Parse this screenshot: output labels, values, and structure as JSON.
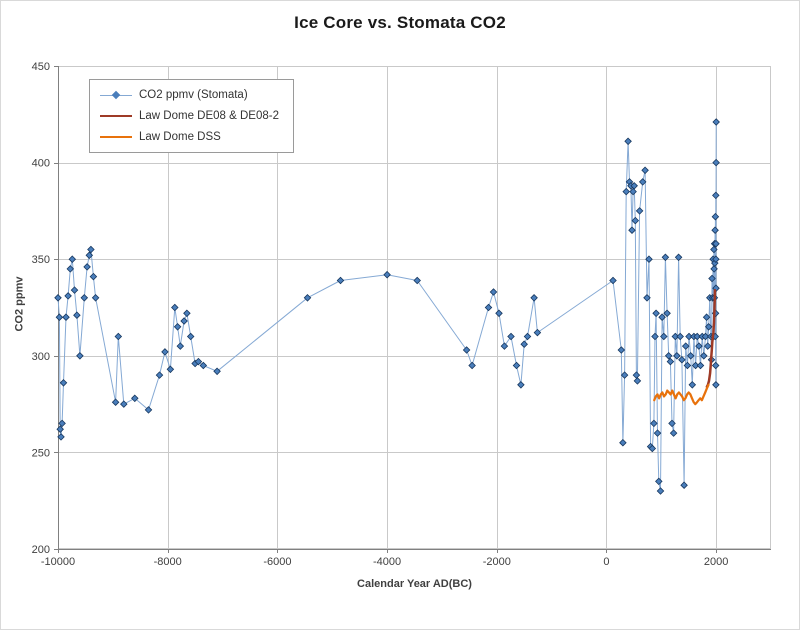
{
  "chart_data": {
    "type": "line",
    "title": "Ice Core vs. Stomata CO2",
    "xlabel": "Calendar Year AD(BC)",
    "ylabel": "CO2 ppmv",
    "xlim": [
      -10000,
      3000
    ],
    "ylim": [
      200,
      450
    ],
    "x_ticks": [
      -10000,
      -8000,
      -6000,
      -4000,
      -2000,
      0,
      2000
    ],
    "y_ticks": [
      200,
      250,
      300,
      350,
      400,
      450
    ],
    "grid": true,
    "legend_position": "top-left-inside",
    "series": [
      {
        "name": "CO2 ppmv (Stomata)",
        "type": "line+marker",
        "marker": "diamond",
        "line_color": "#85A9D4",
        "line_width": 1,
        "marker_color": "#4A7EBB",
        "marker_outline": "#17375E",
        "points": [
          [
            -10000,
            330
          ],
          [
            -9975,
            320
          ],
          [
            -9960,
            262
          ],
          [
            -9945,
            258
          ],
          [
            -9925,
            265
          ],
          [
            -9900,
            286
          ],
          [
            -9855,
            320
          ],
          [
            -9815,
            331
          ],
          [
            -9775,
            345
          ],
          [
            -9740,
            350
          ],
          [
            -9700,
            334
          ],
          [
            -9655,
            321
          ],
          [
            -9600,
            300
          ],
          [
            -9520,
            330
          ],
          [
            -9470,
            346
          ],
          [
            -9430,
            352
          ],
          [
            -9400,
            355
          ],
          [
            -9355,
            341
          ],
          [
            -9315,
            330
          ],
          [
            -8950,
            276
          ],
          [
            -8900,
            310
          ],
          [
            -8800,
            275
          ],
          [
            -8600,
            278
          ],
          [
            -8350,
            272
          ],
          [
            -8150,
            290
          ],
          [
            -8050,
            302
          ],
          [
            -7950,
            293
          ],
          [
            -7870,
            325
          ],
          [
            -7820,
            315
          ],
          [
            -7770,
            305
          ],
          [
            -7700,
            318
          ],
          [
            -7650,
            322
          ],
          [
            -7580,
            310
          ],
          [
            -7500,
            296
          ],
          [
            -7440,
            297
          ],
          [
            -7350,
            295
          ],
          [
            -7100,
            292
          ],
          [
            -5450,
            330
          ],
          [
            -4850,
            339
          ],
          [
            -4000,
            342
          ],
          [
            -3450,
            339
          ],
          [
            -2550,
            303
          ],
          [
            -2450,
            295
          ],
          [
            -2150,
            325
          ],
          [
            -2060,
            333
          ],
          [
            -1960,
            322
          ],
          [
            -1860,
            305
          ],
          [
            -1740,
            310
          ],
          [
            -1640,
            295
          ],
          [
            -1560,
            285
          ],
          [
            -1500,
            306
          ],
          [
            -1440,
            310
          ],
          [
            -1320,
            330
          ],
          [
            -1260,
            312
          ],
          [
            120,
            339
          ],
          [
            270,
            303
          ],
          [
            300,
            255
          ],
          [
            330,
            290
          ],
          [
            360,
            385
          ],
          [
            395,
            411
          ],
          [
            420,
            390
          ],
          [
            445,
            388
          ],
          [
            465,
            365
          ],
          [
            485,
            385
          ],
          [
            505,
            388
          ],
          [
            525,
            370
          ],
          [
            545,
            290
          ],
          [
            565,
            287
          ],
          [
            605,
            375
          ],
          [
            660,
            390
          ],
          [
            705,
            396
          ],
          [
            740,
            330
          ],
          [
            775,
            350
          ],
          [
            805,
            253
          ],
          [
            835,
            252
          ],
          [
            865,
            265
          ],
          [
            885,
            310
          ],
          [
            905,
            322
          ],
          [
            930,
            260
          ],
          [
            955,
            235
          ],
          [
            985,
            230
          ],
          [
            1015,
            320
          ],
          [
            1045,
            310
          ],
          [
            1075,
            351
          ],
          [
            1105,
            322
          ],
          [
            1135,
            300
          ],
          [
            1165,
            297
          ],
          [
            1195,
            265
          ],
          [
            1225,
            260
          ],
          [
            1255,
            310
          ],
          [
            1285,
            300
          ],
          [
            1315,
            351
          ],
          [
            1345,
            310
          ],
          [
            1375,
            298
          ],
          [
            1415,
            233
          ],
          [
            1445,
            305
          ],
          [
            1475,
            295
          ],
          [
            1505,
            310
          ],
          [
            1535,
            300
          ],
          [
            1565,
            285
          ],
          [
            1595,
            310
          ],
          [
            1625,
            295
          ],
          [
            1655,
            310
          ],
          [
            1685,
            305
          ],
          [
            1715,
            295
          ],
          [
            1745,
            310
          ],
          [
            1775,
            300
          ],
          [
            1805,
            310
          ],
          [
            1825,
            320
          ],
          [
            1845,
            305
          ],
          [
            1865,
            315
          ],
          [
            1885,
            330
          ],
          [
            1905,
            310
          ],
          [
            1915,
            298
          ],
          [
            1925,
            340
          ],
          [
            1935,
            330
          ],
          [
            1945,
            350
          ],
          [
            1952,
            310
          ],
          [
            1958,
            355
          ],
          [
            1963,
            345
          ],
          [
            1968,
            330
          ],
          [
            1972,
            358
          ],
          [
            1976,
            348
          ],
          [
            1980,
            365
          ],
          [
            1983,
            310
          ],
          [
            1986,
            372
          ],
          [
            1989,
            322
          ],
          [
            1991,
            295
          ],
          [
            1993,
            383
          ],
          [
            1995,
            285
          ],
          [
            1996,
            350
          ],
          [
            1997,
            335
          ],
          [
            1998,
            358
          ],
          [
            1999,
            400
          ],
          [
            2000,
            421
          ]
        ]
      },
      {
        "name": "Law Dome DE08 & DE08-2",
        "type": "line",
        "line_color": "#9E3A26",
        "line_width": 2.5,
        "points": [
          [
            1832,
            284
          ],
          [
            1850,
            285
          ],
          [
            1870,
            287
          ],
          [
            1890,
            291
          ],
          [
            1900,
            295
          ],
          [
            1910,
            299
          ],
          [
            1920,
            303
          ],
          [
            1930,
            307
          ],
          [
            1940,
            310
          ],
          [
            1950,
            312
          ],
          [
            1955,
            315
          ],
          [
            1960,
            317
          ],
          [
            1965,
            320
          ],
          [
            1970,
            325
          ],
          [
            1975,
            330
          ],
          [
            1978,
            334
          ]
        ]
      },
      {
        "name": "Law Dome DSS",
        "type": "line",
        "line_color": "#E8720C",
        "line_width": 2.25,
        "points": [
          [
            870,
            277
          ],
          [
            900,
            279
          ],
          [
            930,
            280
          ],
          [
            960,
            278
          ],
          [
            990,
            280
          ],
          [
            1020,
            281
          ],
          [
            1050,
            279
          ],
          [
            1080,
            280
          ],
          [
            1110,
            282
          ],
          [
            1140,
            281
          ],
          [
            1170,
            280
          ],
          [
            1200,
            282
          ],
          [
            1230,
            280
          ],
          [
            1260,
            278
          ],
          [
            1290,
            280
          ],
          [
            1320,
            281
          ],
          [
            1350,
            280
          ],
          [
            1380,
            279
          ],
          [
            1410,
            277
          ],
          [
            1440,
            278
          ],
          [
            1470,
            280
          ],
          [
            1500,
            281
          ],
          [
            1530,
            280
          ],
          [
            1560,
            278
          ],
          [
            1590,
            276
          ],
          [
            1620,
            275
          ],
          [
            1650,
            276
          ],
          [
            1680,
            277
          ],
          [
            1710,
            278
          ],
          [
            1740,
            277
          ],
          [
            1770,
            279
          ],
          [
            1800,
            281
          ],
          [
            1830,
            283
          ],
          [
            1860,
            285
          ]
        ]
      }
    ]
  }
}
